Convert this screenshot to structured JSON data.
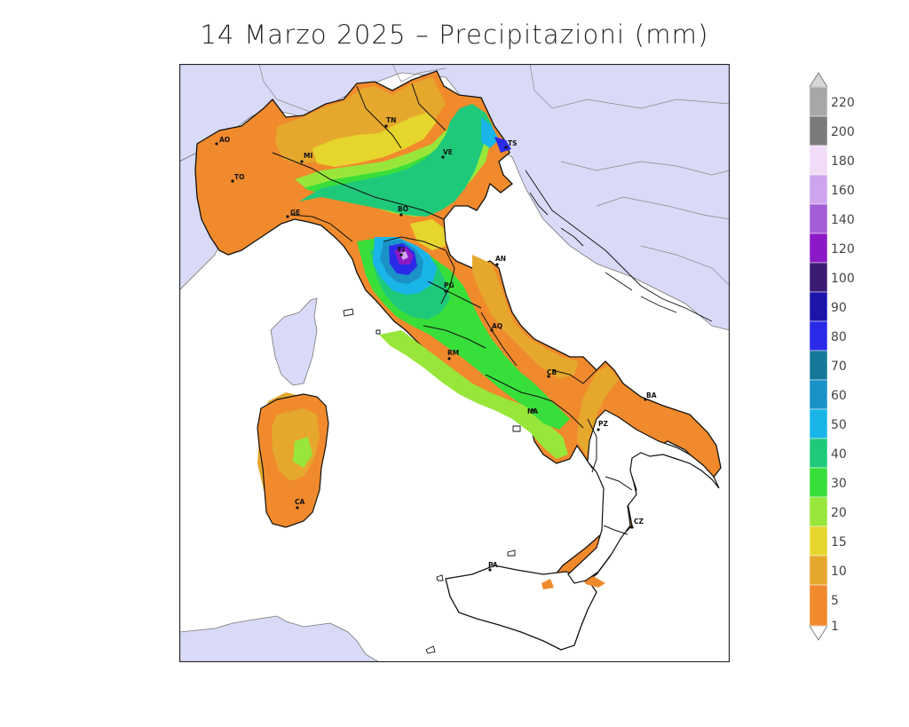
{
  "title": "14 Marzo 2025 – Precipitazioni (mm)",
  "colors": {
    "sea": "#ffffff",
    "foreign_land": "#d9daf7",
    "c1_5": "#f08a2c",
    "c5_10": "#e5a82c",
    "c10_15": "#e6d52c",
    "c15_20": "#98e63a",
    "c20_30": "#38de3a",
    "c30_40": "#1fc97a",
    "c40_50": "#19b5e8",
    "c50_60": "#1a92c8",
    "c60_70": "#15789a",
    "c70_80": "#2a2ae8",
    "c80_90": "#1c15aa",
    "c90_100": "#3b1c75",
    "c100_120": "#8b1ac6",
    "c120_140": "#a35ed6",
    "c140_160": "#cfa4ee",
    "c160_180": "#f2dcf7",
    "c180_200": "#7b7b7b",
    "c200_220": "#a7a7a7"
  },
  "legend": {
    "ticks": [
      "1",
      "5",
      "10",
      "15",
      "20",
      "30",
      "40",
      "50",
      "60",
      "70",
      "80",
      "90",
      "100",
      "120",
      "140",
      "160",
      "180",
      "200",
      "220"
    ]
  },
  "cities": [
    {
      "code": "AO"
    },
    {
      "code": "TO"
    },
    {
      "code": "MI"
    },
    {
      "code": "TN"
    },
    {
      "code": "VE"
    },
    {
      "code": "TS"
    },
    {
      "code": "GE"
    },
    {
      "code": "BO"
    },
    {
      "code": "FI"
    },
    {
      "code": "AN"
    },
    {
      "code": "PG"
    },
    {
      "code": "AQ"
    },
    {
      "code": "RM"
    },
    {
      "code": "CB"
    },
    {
      "code": "NA"
    },
    {
      "code": "BA"
    },
    {
      "code": "PZ"
    },
    {
      "code": "CZ"
    },
    {
      "code": "PA"
    },
    {
      "code": "CA"
    }
  ]
}
